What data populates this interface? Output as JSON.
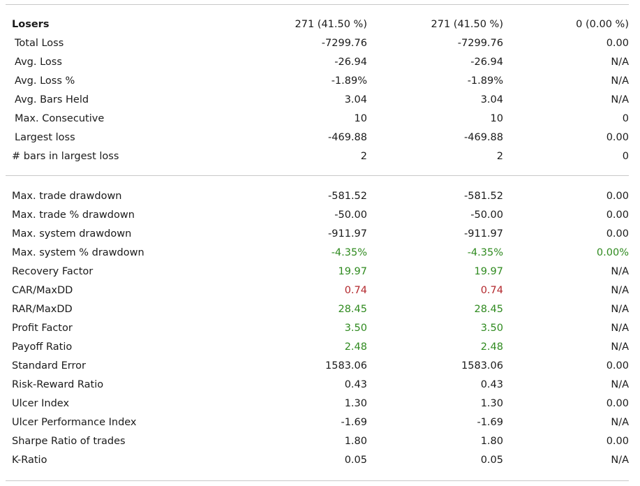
{
  "losers_section": {
    "header": {
      "label": "Losers",
      "all": "271 (41.50 %)",
      "long": "271 (41.50 %)",
      "short": "0 (0.00 %)"
    },
    "rows": [
      {
        "label": "Total Loss",
        "all": "-7299.76",
        "long": "-7299.76",
        "short": "0.00"
      },
      {
        "label": "Avg. Loss",
        "all": "-26.94",
        "long": "-26.94",
        "short": "N/A"
      },
      {
        "label": "Avg. Loss %",
        "all": "-1.89%",
        "long": "-1.89%",
        "short": "N/A"
      },
      {
        "label": "Avg. Bars Held",
        "all": "3.04",
        "long": "3.04",
        "short": "N/A"
      },
      {
        "label": "Max. Consecutive",
        "all": "10",
        "long": "10",
        "short": "0"
      },
      {
        "label": "Largest loss",
        "all": "-469.88",
        "long": "-469.88",
        "short": "0.00"
      },
      {
        "label": "# bars in largest loss",
        "all": "2",
        "long": "2",
        "short": "0"
      }
    ]
  },
  "drawdown_section": {
    "rows": [
      {
        "label": "Max. trade drawdown",
        "all": "-581.52",
        "long": "-581.52",
        "short": "0.00"
      },
      {
        "label": "Max. trade % drawdown",
        "all": "-50.00",
        "long": "-50.00",
        "short": "0.00"
      },
      {
        "label": "Max. system drawdown",
        "all": "-911.97",
        "long": "-911.97",
        "short": "0.00"
      },
      {
        "label": "Max. system % drawdown",
        "all": "-4.35%",
        "long": "-4.35%",
        "short": "0.00%"
      },
      {
        "label": "Recovery Factor",
        "all": "19.97",
        "long": "19.97",
        "short": "N/A"
      },
      {
        "label": "CAR/MaxDD",
        "all": "0.74",
        "long": "0.74",
        "short": "N/A"
      },
      {
        "label": "RAR/MaxDD",
        "all": "28.45",
        "long": "28.45",
        "short": "N/A"
      },
      {
        "label": "Profit Factor",
        "all": "3.50",
        "long": "3.50",
        "short": "N/A"
      },
      {
        "label": "Payoff Ratio",
        "all": "2.48",
        "long": "2.48",
        "short": "N/A"
      },
      {
        "label": "Standard Error",
        "all": "1583.06",
        "long": "1583.06",
        "short": "0.00"
      },
      {
        "label": "Risk-Reward Ratio",
        "all": "0.43",
        "long": "0.43",
        "short": "N/A"
      },
      {
        "label": "Ulcer Index",
        "all": "1.30",
        "long": "1.30",
        "short": "0.00"
      },
      {
        "label": "Ulcer Performance Index",
        "all": "-1.69",
        "long": "-1.69",
        "short": "N/A"
      },
      {
        "label": "Sharpe Ratio of trades",
        "all": "1.80",
        "long": "1.80",
        "short": "0.00"
      },
      {
        "label": "K-Ratio",
        "all": "0.05",
        "long": "0.05",
        "short": "N/A"
      }
    ]
  },
  "colors": {
    "positive": "#2f8a1f",
    "negative": "#b3282d",
    "text": "#1a1a1a"
  }
}
